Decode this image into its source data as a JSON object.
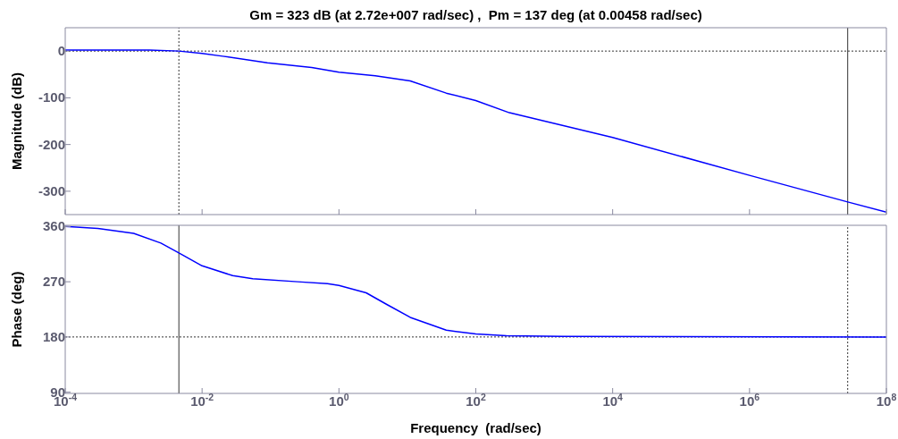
{
  "chart_data": [
    {
      "type": "line",
      "title": "Gm = 323 dB (at 2.72e+007 rad/sec) ,  Pm = 137 deg (at 0.00458 rad/sec)",
      "ylabel": "Magnitude (dB)",
      "log": "x",
      "tick_labels": "y",
      "xlim": [
        0.0001,
        100000000
      ],
      "xticks": [
        {
          "value": 0.0001,
          "label": null
        },
        {
          "value": 0.01,
          "label": null
        },
        {
          "value": 1,
          "label": null
        },
        {
          "value": 100,
          "label": null
        },
        {
          "value": 10000,
          "label": null
        },
        {
          "value": 1000000,
          "label": null
        },
        {
          "value": 100000000,
          "label": null
        }
      ],
      "ylim": [
        -350,
        50
      ],
      "yticks": [
        -300,
        -200,
        -100,
        0
      ],
      "series": [
        {
          "color": "#0000ff",
          "x": [
            0.0001,
            0.0017,
            0.00458,
            0.01,
            0.02,
            0.09,
            0.4,
            1,
            3.4,
            11,
            37,
            100,
            310,
            10000,
            1000000,
            27200000,
            100000000
          ],
          "values": [
            2,
            2,
            0,
            -5,
            -11,
            -25,
            -35,
            -45,
            -53,
            -64,
            -90,
            -106,
            -132,
            -185,
            -266,
            -323,
            -345
          ]
        }
      ],
      "ref_lines": [
        {
          "axis": "y",
          "value": 0,
          "line_style": "dotted",
          "color": "#333333"
        },
        {
          "axis": "x",
          "value": 0.00458,
          "line_style": "dotted",
          "color": "#333333"
        },
        {
          "axis": "x",
          "value": 27200000,
          "line_style": "solid",
          "color": "#333333"
        }
      ]
    },
    {
      "type": "line",
      "ylabel": "Phase (deg)",
      "xlabel": "Frequency  (rad/sec)",
      "log": "x",
      "xlim": [
        0.0001,
        100000000
      ],
      "xticks": [
        {
          "value": 0.0001,
          "label": "10$^{-4}$"
        },
        {
          "value": 0.01,
          "label": "10$^{-2}$"
        },
        {
          "value": 1,
          "label": "10$^{0}$"
        },
        {
          "value": 100,
          "label": "10$^{2}$"
        },
        {
          "value": 10000,
          "label": "10$^{4}$"
        },
        {
          "value": 1000000,
          "label": "10$^{6}$"
        },
        {
          "value": 100000000,
          "label": "10$^{8}$"
        }
      ],
      "ylim": [
        88,
        362
      ],
      "yticks": [
        90,
        180,
        270,
        360
      ],
      "series": [
        {
          "color": "#0000ff",
          "x": [
            0.0001,
            0.0003,
            0.001,
            0.0025,
            0.00458,
            0.01,
            0.028,
            0.055,
            0.25,
            0.68,
            1,
            2.5,
            5,
            11,
            37,
            100,
            280,
            1900,
            100000000
          ],
          "values": [
            360,
            357,
            349,
            333,
            317,
            296,
            280,
            275,
            270,
            267,
            264,
            252,
            233,
            212,
            191,
            185,
            182,
            181,
            180
          ]
        }
      ],
      "ref_lines": [
        {
          "axis": "y",
          "value": 180,
          "line_style": "dotted",
          "color": "#333333"
        },
        {
          "axis": "x",
          "value": 0.00458,
          "line_style": "solid",
          "color": "#333333"
        },
        {
          "axis": "x",
          "value": 27200000,
          "line_style": "dotted",
          "color": "#333333"
        }
      ]
    }
  ]
}
